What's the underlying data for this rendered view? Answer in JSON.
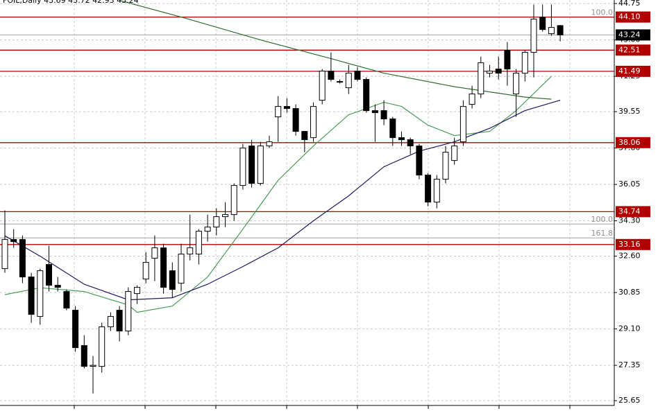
{
  "chart_data": {
    "type": "candlestick",
    "header": "FOIL,Daily  43.69 43.72 42.93 43.24",
    "candles": {
      "open": [
        32.0,
        33.4,
        33.4,
        31.6,
        29.7,
        32.2,
        31.2,
        30.9,
        30.0,
        28.3,
        27.3,
        27.3,
        29.2,
        30.0,
        29.0,
        30.8,
        31.5,
        32.5,
        33.0,
        31.9,
        31.3,
        32.7,
        32.7,
        33.8,
        34.0,
        34.5,
        34.6,
        36.0,
        37.9,
        36.1,
        37.9,
        39.3,
        39.8,
        39.7,
        38.6,
        38.3,
        40.1,
        41.5,
        41.0,
        40.7,
        41.5,
        41.1,
        39.6,
        39.6,
        39.2,
        38.3,
        38.2,
        37.9,
        36.5,
        35.2,
        36.3,
        37.2,
        38.1,
        39.9,
        40.4,
        41.4,
        41.6,
        42.5,
        40.4,
        41.4,
        42.4,
        44.1,
        43.3,
        43.69
      ],
      "high": [
        34.8,
        33.9,
        33.6,
        31.8,
        32.0,
        33.1,
        31.6,
        31.0,
        30.2,
        28.8,
        27.8,
        29.4,
        29.9,
        30.2,
        31.1,
        31.2,
        32.8,
        33.6,
        33.2,
        32.3,
        33.2,
        34.6,
        33.9,
        34.6,
        34.9,
        35.2,
        36.1,
        38.0,
        38.2,
        38.1,
        38.4,
        40.3,
        40.2,
        39.9,
        38.6,
        40.0,
        41.6,
        42.4,
        41.1,
        41.8,
        41.7,
        41.2,
        39.9,
        40.1,
        39.3,
        38.6,
        38.3,
        38.0,
        36.6,
        36.5,
        37.9,
        38.3,
        40.1,
        40.8,
        42.2,
        41.8,
        42.2,
        42.9,
        41.6,
        42.5,
        44.7,
        44.7,
        44.7,
        43.72
      ],
      "low": [
        31.8,
        33.0,
        31.3,
        29.4,
        29.3,
        30.9,
        30.9,
        30.0,
        28.0,
        27.2,
        26.0,
        27.0,
        29.0,
        28.5,
        28.8,
        30.3,
        31.3,
        31.4,
        30.8,
        30.6,
        30.9,
        32.4,
        32.2,
        33.3,
        33.6,
        34.0,
        34.3,
        35.8,
        35.9,
        36.0,
        37.8,
        38.1,
        39.5,
        38.4,
        37.6,
        38.1,
        39.9,
        41.0,
        40.9,
        40.4,
        41.0,
        39.5,
        38.1,
        38.9,
        37.9,
        37.9,
        37.5,
        36.3,
        35.0,
        34.9,
        36.1,
        37.0,
        37.9,
        39.7,
        40.2,
        41.2,
        41.1,
        40.8,
        39.3,
        41.0,
        41.2,
        43.4,
        43.2,
        42.93
      ],
      "close": [
        33.4,
        33.3,
        31.6,
        29.8,
        31.9,
        31.2,
        31.1,
        30.1,
        28.2,
        27.3,
        27.35,
        29.2,
        29.7,
        29.0,
        30.9,
        31.1,
        32.3,
        33.0,
        31.1,
        31.0,
        32.7,
        33.0,
        33.8,
        34.0,
        34.5,
        34.6,
        36.0,
        37.8,
        36.1,
        37.9,
        38.1,
        39.8,
        39.7,
        38.6,
        38.2,
        39.8,
        41.5,
        41.1,
        41.0,
        41.4,
        41.1,
        39.6,
        39.5,
        39.2,
        38.3,
        38.2,
        37.9,
        36.5,
        35.2,
        36.3,
        37.6,
        37.9,
        39.8,
        40.4,
        41.9,
        41.5,
        41.4,
        41.6,
        41.4,
        42.4,
        44.0,
        43.5,
        43.6,
        43.24
      ]
    },
    "moving_averages": [
      {
        "color": "#4a9a5a",
        "x": [
          0,
          4,
          9,
          14,
          15,
          19,
          23,
          27,
          31,
          35,
          39,
          43,
          45,
          48,
          51,
          55,
          58,
          62
        ],
        "values": [
          30.75,
          31.08,
          30.9,
          30.25,
          29.9,
          30.2,
          31.6,
          33.9,
          36.25,
          37.9,
          39.4,
          40.0,
          39.8,
          38.9,
          38.4,
          38.6,
          39.6,
          41.25
        ]
      },
      {
        "color": "#1a1a5e",
        "x": [
          0,
          4,
          9,
          14,
          19,
          23,
          27,
          31,
          35,
          39,
          43,
          47,
          51,
          55,
          59,
          63
        ],
        "values": [
          33.58,
          32.6,
          31.25,
          30.5,
          30.6,
          31.25,
          32.1,
          33.0,
          34.3,
          35.5,
          36.9,
          37.65,
          38.1,
          38.75,
          39.6,
          40.1
        ]
      },
      {
        "color": "#2f6b2f",
        "x": [
          13,
          20,
          29,
          37,
          43,
          51,
          59,
          62
        ],
        "values": [
          44.9,
          44.1,
          43.0,
          42.1,
          41.4,
          40.75,
          40.25,
          40.15
        ]
      }
    ],
    "levels": [
      {
        "value": 44.1,
        "label": "44.10"
      },
      {
        "value": 42.51,
        "label": "42.51"
      },
      {
        "value": 41.49,
        "label": "41.49"
      },
      {
        "value": 38.06,
        "label": "38.06"
      },
      {
        "value": 34.74,
        "label": "34.74"
      },
      {
        "value": 33.16,
        "label": "33.16"
      }
    ],
    "level_color": "#b00000",
    "fib_levels": [
      {
        "value": 44.1,
        "label": "100.0"
      },
      {
        "value": 34.15,
        "label": "100.0"
      },
      {
        "value": 33.48,
        "label": "161.8"
      }
    ],
    "current_price": {
      "value": 43.24,
      "label": "43.24"
    },
    "ylim": [
      25.42,
      44.92
    ],
    "yticks": [
      {
        "value": 25.65,
        "label": "25.65"
      },
      27.35,
      {
        "value": 29.1,
        "label": "29.10"
      },
      30.85,
      {
        "value": 32.6,
        "label": "32.60"
      },
      {
        "value": 34.3,
        "label": "34.30"
      },
      36.05,
      {
        "value": 37.8,
        "label": "37.80"
      },
      39.55,
      41.25,
      {
        "value": 43,
        "label": "43.00"
      },
      44.75
    ],
    "grid": true
  }
}
